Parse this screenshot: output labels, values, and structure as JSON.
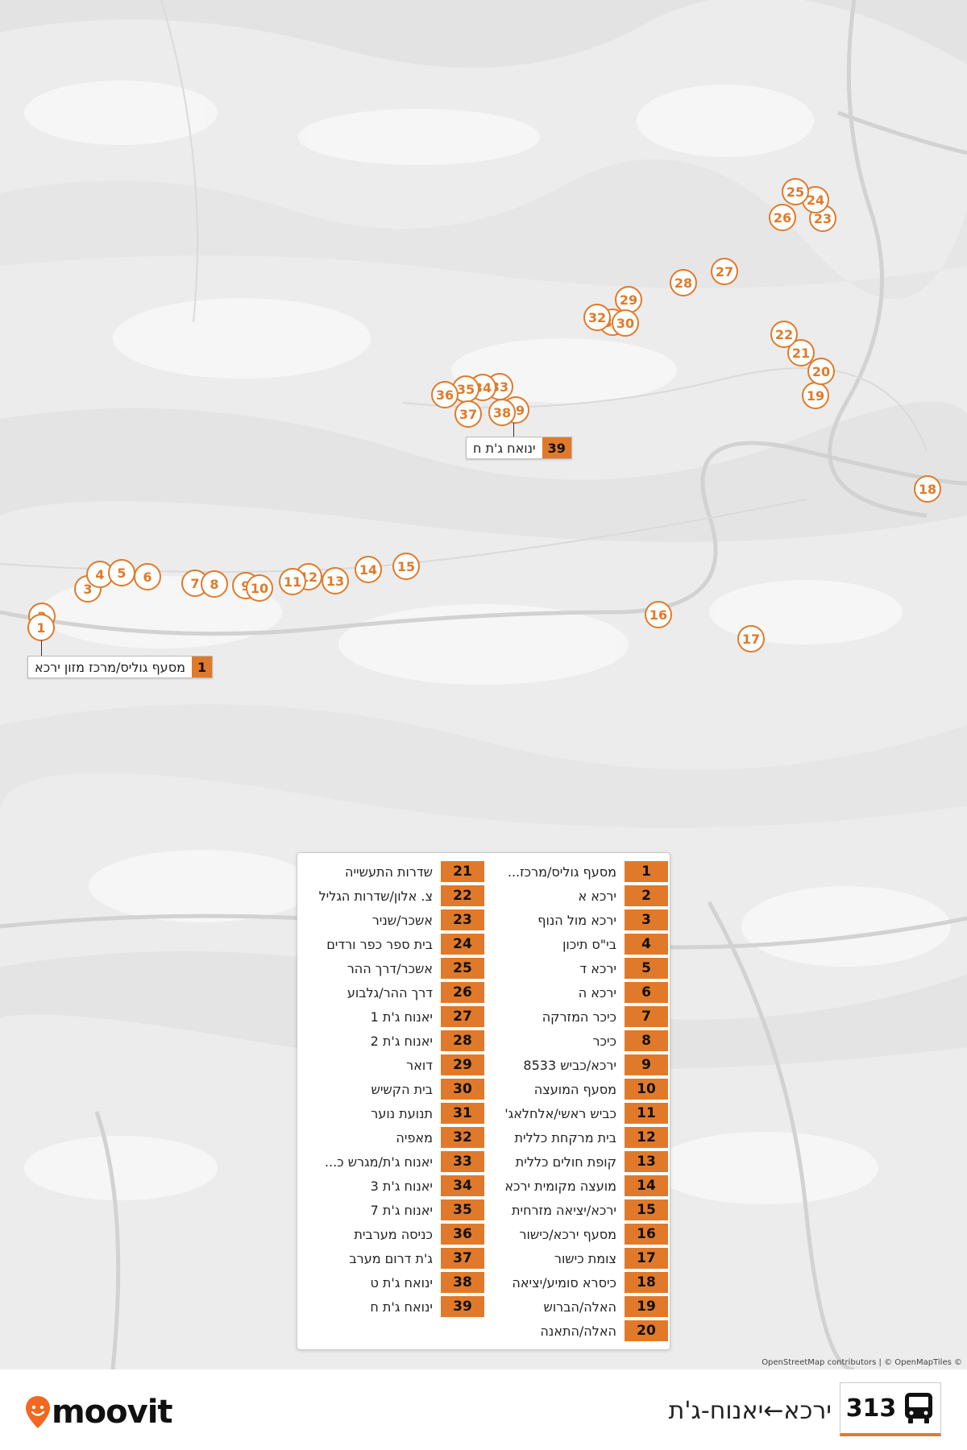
{
  "route": {
    "number": "313",
    "name": "ירכא←יאנוח-ג'ת"
  },
  "brand": {
    "logo_text": "moovit",
    "accent": "#e07a2a"
  },
  "map": {
    "attribution": "OpenStreetMap contributors | © OpenMapTiles ©",
    "stops": [
      "1",
      "2",
      "3",
      "4",
      "5",
      "6",
      "7",
      "8",
      "9",
      "10",
      "11",
      "12",
      "13",
      "14",
      "15",
      "16",
      "17",
      "18",
      "19",
      "20",
      "21",
      "22",
      "23",
      "24",
      "25",
      "26",
      "27",
      "28",
      "29",
      "30",
      "31",
      "32",
      "33",
      "34",
      "35",
      "36",
      "37",
      "38",
      "39"
    ],
    "start_callout": {
      "num": "1",
      "label": "מסעף גוליס/מרכז מזון ירכא"
    },
    "end_callout": {
      "num": "39",
      "label": "ינואח ג'ת ח"
    }
  },
  "legend": [
    {
      "num": "1",
      "name": "מסעף גוליס/מרכז..."
    },
    {
      "num": "2",
      "name": "ירכא א"
    },
    {
      "num": "3",
      "name": "ירכא מול הנוף"
    },
    {
      "num": "4",
      "name": "בי\"ס תיכון"
    },
    {
      "num": "5",
      "name": "ירכא ד"
    },
    {
      "num": "6",
      "name": "ירכא ה"
    },
    {
      "num": "7",
      "name": "כיכר המזרקה"
    },
    {
      "num": "8",
      "name": "כיכר"
    },
    {
      "num": "9",
      "name": "ירכא/כביש 8533"
    },
    {
      "num": "10",
      "name": "מסעף המועצה"
    },
    {
      "num": "11",
      "name": "כביש ראשי/אלחלאג'"
    },
    {
      "num": "12",
      "name": "בית מרקחת כללית"
    },
    {
      "num": "13",
      "name": "קופת חולים כללית"
    },
    {
      "num": "14",
      "name": "מועצה מקומית ירכא"
    },
    {
      "num": "15",
      "name": "ירכא/יציאה מזרחית"
    },
    {
      "num": "16",
      "name": "מסעף ירכא/כישור"
    },
    {
      "num": "17",
      "name": "צומת כישור"
    },
    {
      "num": "18",
      "name": "כיסרא סומיע/יציאה"
    },
    {
      "num": "19",
      "name": "האלה/הברוש"
    },
    {
      "num": "20",
      "name": "האלה/התאנה"
    },
    {
      "num": "21",
      "name": "שדרות התעשייה"
    },
    {
      "num": "22",
      "name": "צ. אלון/שדרות הגליל"
    },
    {
      "num": "23",
      "name": "אשכר/שניר"
    },
    {
      "num": "24",
      "name": "בית ספר כפר ורדים"
    },
    {
      "num": "25",
      "name": "אשכר/דרך ההר"
    },
    {
      "num": "26",
      "name": "דרך ההר/גלבוע"
    },
    {
      "num": "27",
      "name": "יאנוח ג'ת 1"
    },
    {
      "num": "28",
      "name": "יאנוח ג'ת 2"
    },
    {
      "num": "29",
      "name": "דואר"
    },
    {
      "num": "30",
      "name": "בית הקשיש"
    },
    {
      "num": "31",
      "name": "תנועת נוער"
    },
    {
      "num": "32",
      "name": "מאפיה"
    },
    {
      "num": "33",
      "name": "יאנוח ג'ת/מגרש כ..."
    },
    {
      "num": "34",
      "name": "יאנוח ג'ת 3"
    },
    {
      "num": "35",
      "name": "יאנוח ג'ת 7"
    },
    {
      "num": "36",
      "name": "כניסה מערבית"
    },
    {
      "num": "37",
      "name": "ג'ת דרום מערב"
    },
    {
      "num": "38",
      "name": "ינואח ג'ת ט"
    },
    {
      "num": "39",
      "name": "ינואח ג'ת ח"
    }
  ]
}
